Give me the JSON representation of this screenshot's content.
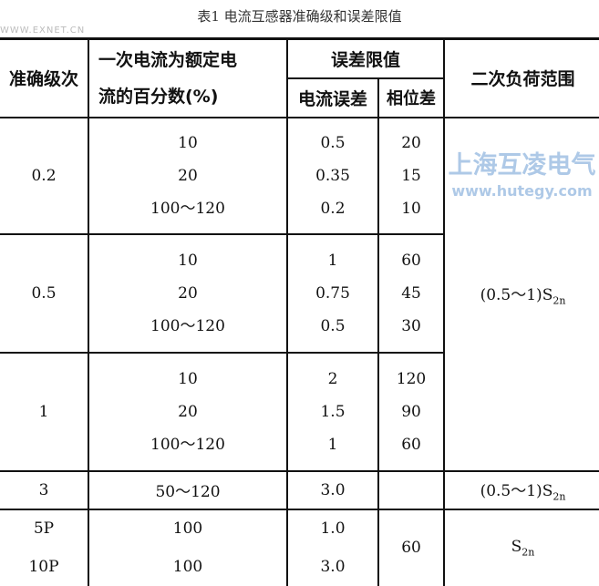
{
  "title": "表1 电流互感器准确级和误差限值",
  "watermark": {
    "brand": "上海互凌电气",
    "url": "www.hutegy.com",
    "corner": "WWW.EXNET.CN"
  },
  "headers": {
    "accuracy_class": "准确级次",
    "primary_current_percent": "一次电流为额定电流的百分数(%)",
    "primary_line1": "一次电流为额定电",
    "primary_line2": "流的百分数(%)",
    "error_limits": "误差限值",
    "current_error": "电流误差",
    "phase_error": "相位差",
    "secondary_load": "二次负荷范围"
  },
  "groups": [
    {
      "class": "0.2",
      "percent": [
        "10",
        "20",
        "100～120"
      ],
      "current_error": [
        "0.5",
        "0.35",
        "0.2"
      ],
      "phase_error": [
        "20",
        "15",
        "10"
      ]
    },
    {
      "class": "0.5",
      "percent": [
        "10",
        "20",
        "100～120"
      ],
      "current_error": [
        "1",
        "0.75",
        "0.5"
      ],
      "phase_error": [
        "60",
        "45",
        "30"
      ]
    },
    {
      "class": "1",
      "percent": [
        "10",
        "20",
        "100～120"
      ],
      "current_error": [
        "2",
        "1.5",
        "1"
      ],
      "phase_error": [
        "120",
        "90",
        "60"
      ]
    },
    {
      "class": "3",
      "percent": [
        "50～120"
      ],
      "current_error": [
        "3.0"
      ]
    },
    {
      "class": "5P",
      "percent": [
        "100"
      ],
      "current_error": [
        "1.0"
      ]
    },
    {
      "class": "10P",
      "percent": [
        "100"
      ],
      "current_error": [
        "3.0"
      ]
    }
  ],
  "load_range": {
    "main": "(0.5～1)S",
    "row3": "(0.5～1)S",
    "protect": "S",
    "sub": "2n"
  },
  "protect_phase_error": "60"
}
